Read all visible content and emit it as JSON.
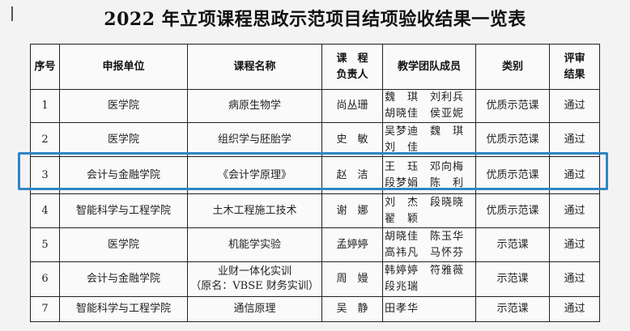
{
  "title": "2022 年立项课程思政示范项目结项验收结果一览表",
  "headers": [
    "序号",
    "申报单位",
    "课程名称",
    "课　程\n负责人",
    "教学团队成员",
    "类别",
    "评审\n结果"
  ],
  "rows": [
    {
      "no": "1",
      "unit": "医学院",
      "course": "病原生物学",
      "lead": "尚丛珊",
      "team": [
        "魏　琪",
        "刘利兵",
        "胡晓佳",
        "侯亚妮"
      ],
      "type": "优质示范课",
      "result": "通过"
    },
    {
      "no": "2",
      "unit": "医学院",
      "course": "组织学与胚胎学",
      "lead": "史　敏",
      "team": [
        "吴梦迪",
        "魏　琪",
        "刘　佳",
        ""
      ],
      "type": "优质示范课",
      "result": "通过"
    },
    {
      "no": "3",
      "unit": "会计与金融学院",
      "course": "《会计学原理》",
      "lead": "赵　洁",
      "team": [
        "王　珏",
        "邓向梅",
        "段梦娟",
        "陈　利"
      ],
      "type": "优质示范课",
      "result": "通过"
    },
    {
      "no": "4",
      "unit": "智能科学与工程学院",
      "course": "土木工程施工技术",
      "lead": "谢　娜",
      "team": [
        "刘　杰",
        "段晓晓",
        "翟　颖",
        ""
      ],
      "type": "优质示范课",
      "result": "通过"
    },
    {
      "no": "5",
      "unit": "医学院",
      "course": "机能学实验",
      "lead": "孟婷婷",
      "team": [
        "胡晓佳",
        "陈玉华",
        "高祎凡",
        "马怀芬"
      ],
      "type": "示范课",
      "result": "通过"
    },
    {
      "no": "6",
      "unit": "会计与金融学院",
      "course": "业财一体化实训\n（原名：VBSE 财务实训）",
      "lead": "周　嫚",
      "team": [
        "韩婷婷",
        "符雅薇",
        "段兆瑞",
        ""
      ],
      "type": "示范课",
      "result": "通过"
    },
    {
      "no": "7",
      "unit": "智能科学与工程学院",
      "course": "通信原理",
      "lead": "吴　静",
      "team": [
        "田孝华",
        "",
        "",
        ""
      ],
      "type": "示范课",
      "result": "通过"
    }
  ],
  "highlight_color": "#2f86c4"
}
